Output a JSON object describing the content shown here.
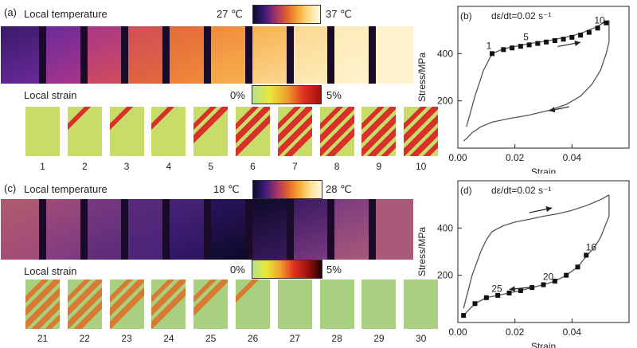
{
  "panel_a": {
    "label": "(a)",
    "temp_title": "Local temperature",
    "temp_cb_min": "27 ℃",
    "temp_cb_max": "37 ℃",
    "strain_title": "Local strain",
    "strain_cb_min": "0%",
    "strain_cb_max": "5%",
    "frames": [
      "1",
      "2",
      "3",
      "4",
      "5",
      "6",
      "7",
      "8",
      "9",
      "10"
    ],
    "thermal_colors": [
      "#3a1a6a",
      "#6a2a9a",
      "#a8368a",
      "#d04d5a",
      "#e26a3a",
      "#f08a3a",
      "#f7b050",
      "#fbd890",
      "#fdebb8",
      "#fff2cc"
    ],
    "strain_bands": [
      0,
      1,
      1,
      1,
      2,
      3,
      4,
      4,
      5,
      5
    ]
  },
  "panel_c": {
    "label": "(c)",
    "temp_title": "Local temperature",
    "temp_cb_min": "18 ℃",
    "temp_cb_max": "28 ℃",
    "strain_title": "Local strain",
    "strain_cb_min": "0%",
    "strain_cb_max": "5%",
    "frames": [
      "21",
      "22",
      "23",
      "24",
      "25",
      "26",
      "27",
      "28",
      "29",
      "30"
    ],
    "thermal_colors": [
      "#b05a70",
      "#a04a78",
      "#7a3a80",
      "#5a2a7a",
      "#4a2478",
      "#2a1460",
      "#0e0a28",
      "#3a1a60",
      "#7a3a80",
      "#a85a78"
    ],
    "strain_bands": [
      5,
      4,
      3,
      3,
      2,
      1,
      0,
      0,
      0,
      0
    ]
  },
  "chart_data": [
    {
      "type": "line",
      "panel": "(b)",
      "annotation": "dε/dt=0.02 s⁻¹",
      "xlabel": "Strain",
      "ylabel": "Stress/MPa",
      "xlim": [
        0,
        0.06
      ],
      "ylim": [
        0,
        600
      ],
      "xticks": [
        "0.00",
        "0.02",
        "0.04"
      ],
      "yticks": [
        "200",
        "400"
      ],
      "loading": {
        "x": [
          0.003,
          0.006,
          0.009,
          0.012,
          0.016,
          0.02,
          0.024,
          0.028,
          0.032,
          0.036,
          0.04,
          0.044,
          0.048,
          0.051,
          0.053
        ],
        "y": [
          90,
          220,
          330,
          400,
          420,
          430,
          440,
          448,
          455,
          465,
          475,
          490,
          510,
          530,
          540
        ]
      },
      "unloading": {
        "x": [
          0.053,
          0.052,
          0.05,
          0.047,
          0.043,
          0.038,
          0.032,
          0.025,
          0.018,
          0.012,
          0.008,
          0.005,
          0.003,
          0.002
        ],
        "y": [
          450,
          400,
          330,
          270,
          220,
          185,
          160,
          140,
          125,
          110,
          90,
          65,
          40,
          30
        ]
      },
      "markers": {
        "x": [
          0.012,
          0.016,
          0.019,
          0.022,
          0.025,
          0.028,
          0.031,
          0.034,
          0.037,
          0.04,
          0.043,
          0.046,
          0.049,
          0.052
        ],
        "y": [
          400,
          417,
          424,
          431,
          437,
          443,
          449,
          455,
          461,
          469,
          478,
          490,
          508,
          530
        ]
      },
      "point_labels": [
        {
          "text": "1",
          "x": 0.012,
          "y": 400
        },
        {
          "text": "5",
          "x": 0.025,
          "y": 437
        },
        {
          "text": "10",
          "x": 0.048,
          "y": 508
        }
      ],
      "arrows": [
        {
          "x1": 0.035,
          "y1": 430,
          "x2": 0.043,
          "y2": 448
        },
        {
          "x1": 0.039,
          "y1": 175,
          "x2": 0.032,
          "y2": 158
        }
      ]
    },
    {
      "type": "line",
      "panel": "(d)",
      "annotation": "dε/dt=0.02 s⁻¹",
      "xlabel": "Strain",
      "ylabel": "Stress/MPa",
      "xlim": [
        0,
        0.06
      ],
      "ylim": [
        0,
        600
      ],
      "xticks": [
        "0.00",
        "0.02",
        "0.04"
      ],
      "yticks": [
        "200",
        "400"
      ],
      "loading": {
        "x": [
          0.002,
          0.005,
          0.008,
          0.01,
          0.012,
          0.016,
          0.02,
          0.025,
          0.03,
          0.035,
          0.04,
          0.045,
          0.05,
          0.053
        ],
        "y": [
          60,
          200,
          300,
          350,
          385,
          410,
          425,
          437,
          450,
          460,
          475,
          495,
          520,
          540
        ]
      },
      "unloading": {
        "x": [
          0.053,
          0.052,
          0.05,
          0.048,
          0.045,
          0.042,
          0.038,
          0.034,
          0.03,
          0.026,
          0.022,
          0.018,
          0.014,
          0.01,
          0.006,
          0.004,
          0.002
        ],
        "y": [
          450,
          420,
          360,
          320,
          280,
          235,
          200,
          175,
          160,
          148,
          135,
          125,
          115,
          105,
          80,
          55,
          30
        ]
      },
      "markers": {
        "x": [
          0.002,
          0.006,
          0.01,
          0.014,
          0.018,
          0.022,
          0.026,
          0.03,
          0.034,
          0.038,
          0.042,
          0.045
        ],
        "y": [
          30,
          80,
          105,
          115,
          125,
          135,
          148,
          160,
          175,
          200,
          235,
          285
        ]
      },
      "point_labels": [
        {
          "text": "16",
          "x": 0.045,
          "y": 285
        },
        {
          "text": "20",
          "x": 0.03,
          "y": 160
        },
        {
          "text": "25",
          "x": 0.012,
          "y": 110
        }
      ],
      "arrows": [
        {
          "x1": 0.025,
          "y1": 465,
          "x2": 0.033,
          "y2": 485
        },
        {
          "x1": 0.026,
          "y1": 150,
          "x2": 0.018,
          "y2": 140
        }
      ]
    }
  ]
}
